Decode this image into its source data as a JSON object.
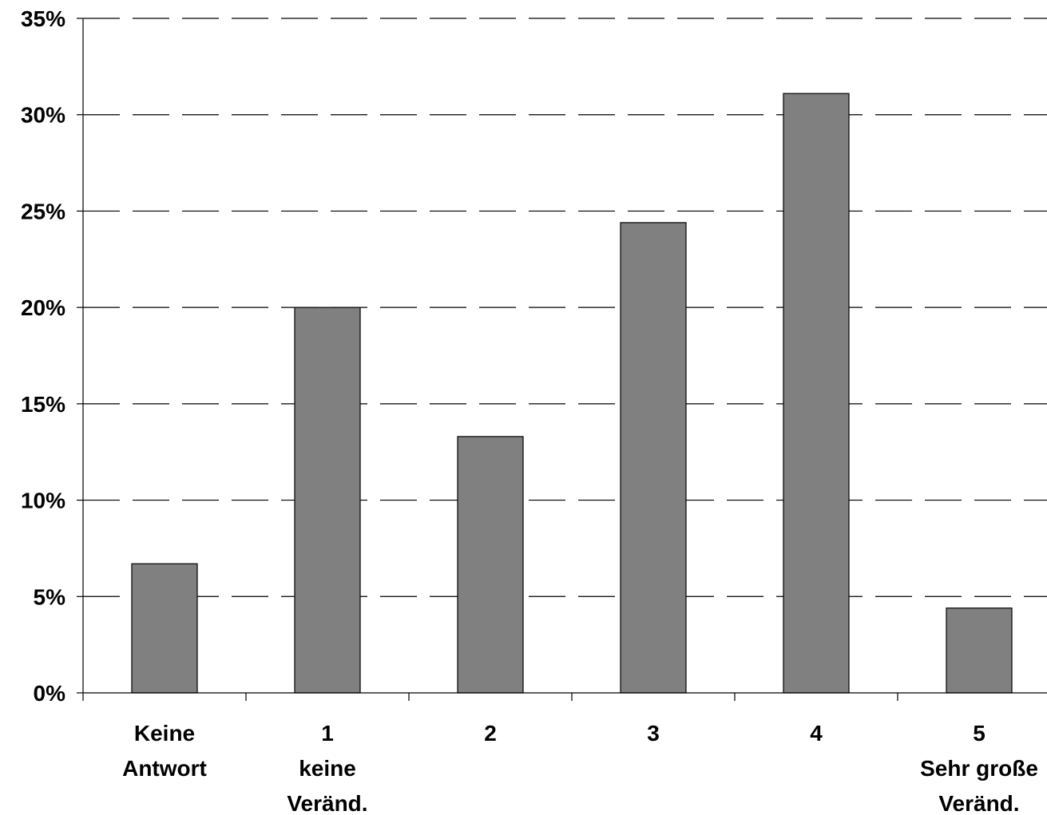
{
  "chart_data": {
    "type": "bar",
    "categories": [
      [
        "Keine",
        "Antwort"
      ],
      [
        "1",
        "keine",
        "Veränd."
      ],
      [
        "2"
      ],
      [
        "3"
      ],
      [
        "4"
      ],
      [
        "5",
        "Sehr große",
        "Veränd."
      ]
    ],
    "values": [
      6.7,
      20.0,
      13.3,
      24.4,
      31.1,
      4.4
    ],
    "value_unit": "%",
    "y_ticks": [
      "0%",
      "5%",
      "10%",
      "15%",
      "20%",
      "25%",
      "30%",
      "35%"
    ],
    "ylim": [
      0,
      35
    ],
    "grid": "horizontal dashed",
    "bar_color": "#808080",
    "bar_border_color": "#000000",
    "title": "",
    "xlabel": "",
    "ylabel": ""
  }
}
